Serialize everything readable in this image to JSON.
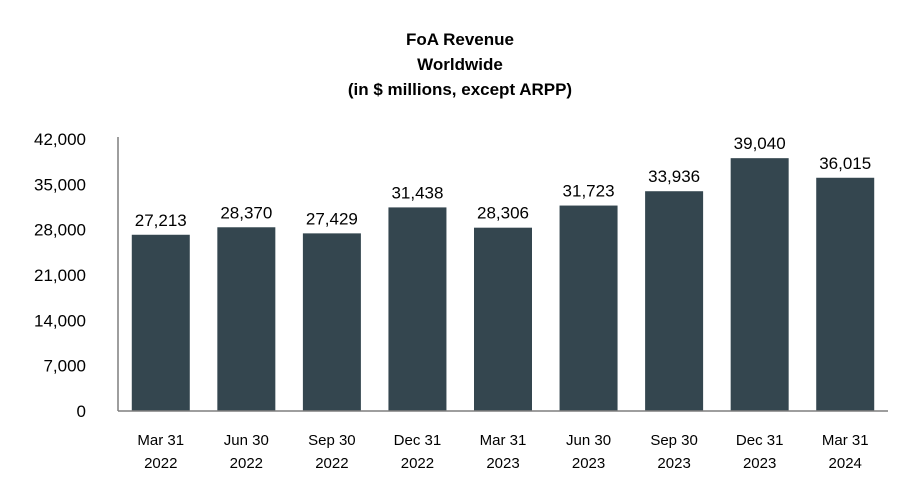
{
  "chart_data": {
    "type": "bar",
    "title": [
      "FoA Revenue",
      "Worldwide",
      "(in $ millions, except ARPP)"
    ],
    "categories": [
      [
        "Mar 31",
        "2022"
      ],
      [
        "Jun 30",
        "2022"
      ],
      [
        "Sep 30",
        "2022"
      ],
      [
        "Dec 31",
        "2022"
      ],
      [
        "Mar 31",
        "2023"
      ],
      [
        "Jun 30",
        "2023"
      ],
      [
        "Sep 30",
        "2023"
      ],
      [
        "Dec 31",
        "2023"
      ],
      [
        "Mar 31",
        "2024"
      ]
    ],
    "values": [
      27213,
      28370,
      27429,
      31438,
      28306,
      31723,
      33936,
      39040,
      36015
    ],
    "value_labels": [
      "27,213",
      "28,370",
      "27,429",
      "31,438",
      "28,306",
      "31,723",
      "33,936",
      "39,040",
      "36,015"
    ],
    "ylim": [
      0,
      42000
    ],
    "yticks": [
      0,
      7000,
      14000,
      21000,
      28000,
      35000,
      42000
    ],
    "ytick_labels": [
      "0",
      "7,000",
      "14,000",
      "21,000",
      "28,000",
      "35,000",
      "42,000"
    ],
    "grid": false,
    "bar_color": "#34464f",
    "axis_color": "#7f7f7f"
  }
}
